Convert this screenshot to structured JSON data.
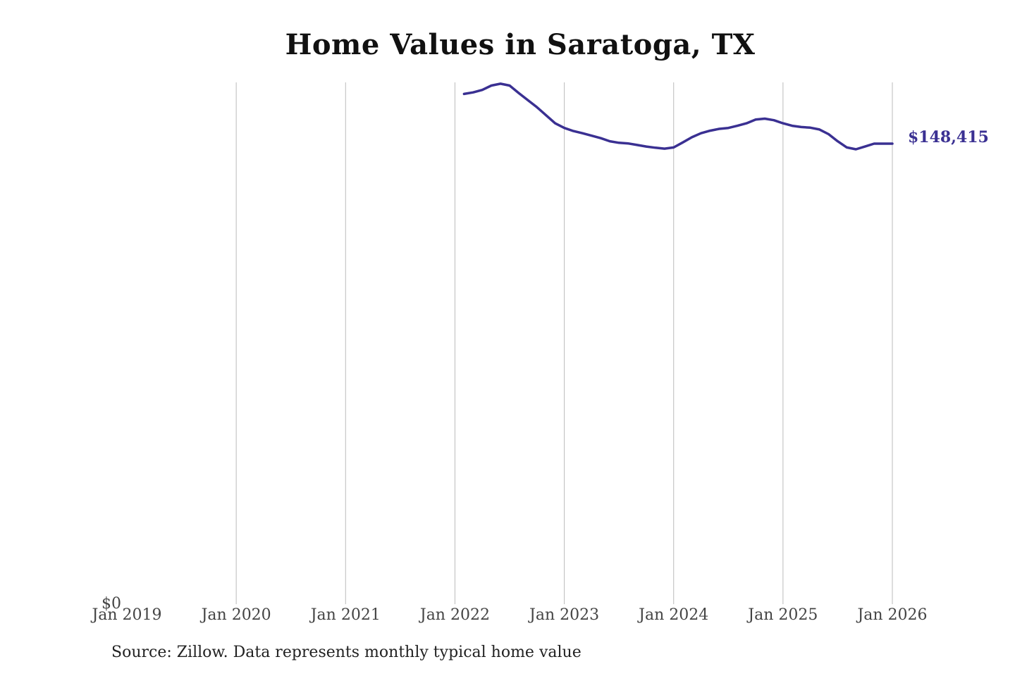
{
  "chart_data": {
    "type": "line",
    "title": "Home Values in Saratoga, TX",
    "xlabel": "",
    "ylabel": "",
    "x_ticks": [
      "Jan 2019",
      "Jan 2020",
      "Jan 2021",
      "Jan 2022",
      "Jan 2023",
      "Jan 2024",
      "Jan 2025",
      "Jan 2026"
    ],
    "y_ticks": [
      "$0"
    ],
    "xlim": [
      "2019-01",
      "2026-01"
    ],
    "ylim": [
      0,
      168000
    ],
    "grid": "vertical",
    "last_value_label": "$148,415",
    "colors": {
      "line": "#3a3092",
      "grid": "#bbbbbb",
      "text": "#222222"
    },
    "series": [
      {
        "x": [
          "2022-02",
          "2022-03",
          "2022-04",
          "2022-05",
          "2022-06",
          "2022-07",
          "2022-08",
          "2022-09",
          "2022-10",
          "2022-11",
          "2022-12",
          "2023-01",
          "2023-02",
          "2023-03",
          "2023-04",
          "2023-05",
          "2023-06",
          "2023-07",
          "2023-08",
          "2023-09",
          "2023-10",
          "2023-11",
          "2023-12",
          "2024-01",
          "2024-02",
          "2024-03",
          "2024-04",
          "2024-05",
          "2024-06",
          "2024-07",
          "2024-08",
          "2024-09",
          "2024-10",
          "2024-11",
          "2024-12",
          "2025-01",
          "2025-02",
          "2025-03",
          "2025-04",
          "2025-05",
          "2025-06",
          "2025-07",
          "2025-08",
          "2025-09",
          "2025-10",
          "2025-11",
          "2025-12",
          "2026-01"
        ],
        "y": [
          164500,
          165000,
          165800,
          167200,
          167800,
          167200,
          164800,
          162500,
          160200,
          157600,
          155000,
          153500,
          152500,
          151800,
          151000,
          150200,
          149200,
          148700,
          148500,
          148000,
          147500,
          147100,
          146800,
          147200,
          148800,
          150500,
          151800,
          152600,
          153200,
          153500,
          154200,
          155000,
          156200,
          156500,
          156000,
          155000,
          154200,
          153800,
          153600,
          153000,
          151500,
          149200,
          147200,
          146600,
          147500,
          148415,
          148415,
          148415
        ]
      }
    ]
  },
  "source": "Source: Zillow. Data represents monthly typical home value"
}
